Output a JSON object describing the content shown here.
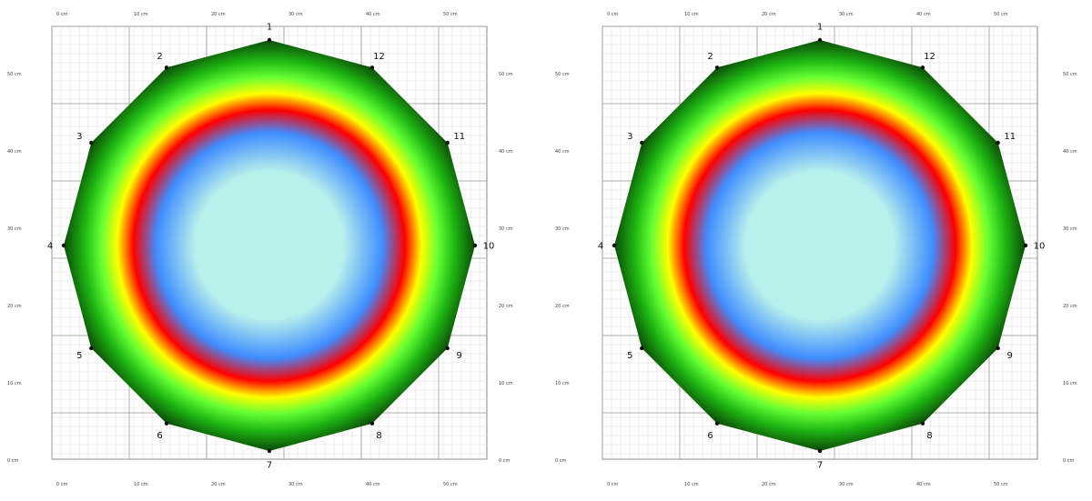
{
  "chart_data": [
    {
      "type": "heatmap",
      "name": "left",
      "title": "",
      "electrodes": [
        "1",
        "2",
        "3",
        "4",
        "5",
        "6",
        "7",
        "8",
        "9",
        "10",
        "11",
        "12"
      ],
      "x_ticks": [
        "0 cm",
        "10 cm",
        "20 cm",
        "30 cm",
        "40 cm",
        "50 cm"
      ],
      "y_ticks": [
        "50 cm",
        "40 cm",
        "30 cm",
        "20 cm",
        "10 cm",
        "0 cm"
      ],
      "grid": true,
      "colorscale": [
        "#0b4a06",
        "#1fb814",
        "#66ff33",
        "#ffff00",
        "#ff0000",
        "#3f8dff",
        "#b8f0ec"
      ],
      "ring_levels": [
        0.18,
        0.3,
        0.36,
        0.42,
        0.48,
        0.58,
        0.74
      ]
    },
    {
      "type": "heatmap",
      "name": "right",
      "title": "",
      "electrodes": [
        "1",
        "2",
        "3",
        "4",
        "5",
        "6",
        "7",
        "8",
        "9",
        "10",
        "11",
        "12"
      ],
      "x_ticks": [
        "0 cm",
        "10 cm",
        "20 cm",
        "30 cm",
        "40 cm",
        "50 cm"
      ],
      "y_ticks": [
        "50 cm",
        "40 cm",
        "30 cm",
        "20 cm",
        "10 cm",
        "0 cm"
      ],
      "grid": true,
      "colorscale": [
        "#0b4a06",
        "#1fb814",
        "#66ff33",
        "#ffff00",
        "#ff0000",
        "#3f8dff",
        "#b8f0ec"
      ],
      "ring_levels": [
        0.18,
        0.3,
        0.36,
        0.42,
        0.48,
        0.58,
        0.74
      ]
    }
  ]
}
